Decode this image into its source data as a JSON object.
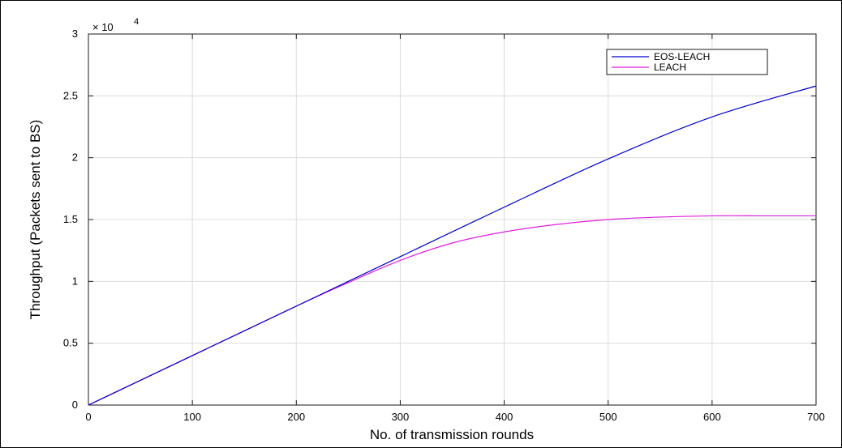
{
  "chart_data": {
    "type": "line",
    "xlabel": "No. of transmission rounds",
    "ylabel": "Throughput (Packets sent to BS)",
    "y_exponent_label": {
      "base": "× 10",
      "power": "4"
    },
    "xlim": [
      0,
      700
    ],
    "ylim": [
      0,
      3
    ],
    "x_ticks": [
      0,
      100,
      200,
      300,
      400,
      500,
      600,
      700
    ],
    "y_ticks": [
      0,
      0.5,
      1,
      1.5,
      2,
      2.5,
      3
    ],
    "y_tick_labels": [
      "0",
      "0.5",
      "1",
      "1.5",
      "2",
      "2.5",
      "3"
    ],
    "grid": true,
    "legend_position": "top-right",
    "series": [
      {
        "name": "EOS-LEACH",
        "color": "#0000cc",
        "x": [
          0,
          100,
          200,
          250,
          300,
          400,
          500,
          600,
          700
        ],
        "y": [
          0,
          0.4,
          0.8,
          1.0,
          1.2,
          1.6,
          1.99,
          2.33,
          2.58
        ]
      },
      {
        "name": "LEACH",
        "color": "#e01ee0",
        "x": [
          0,
          100,
          200,
          250,
          300,
          350,
          400,
          450,
          500,
          550,
          600,
          650,
          700
        ],
        "y": [
          0,
          0.4,
          0.8,
          0.99,
          1.17,
          1.31,
          1.4,
          1.46,
          1.5,
          1.52,
          1.53,
          1.53,
          1.53
        ]
      }
    ]
  }
}
